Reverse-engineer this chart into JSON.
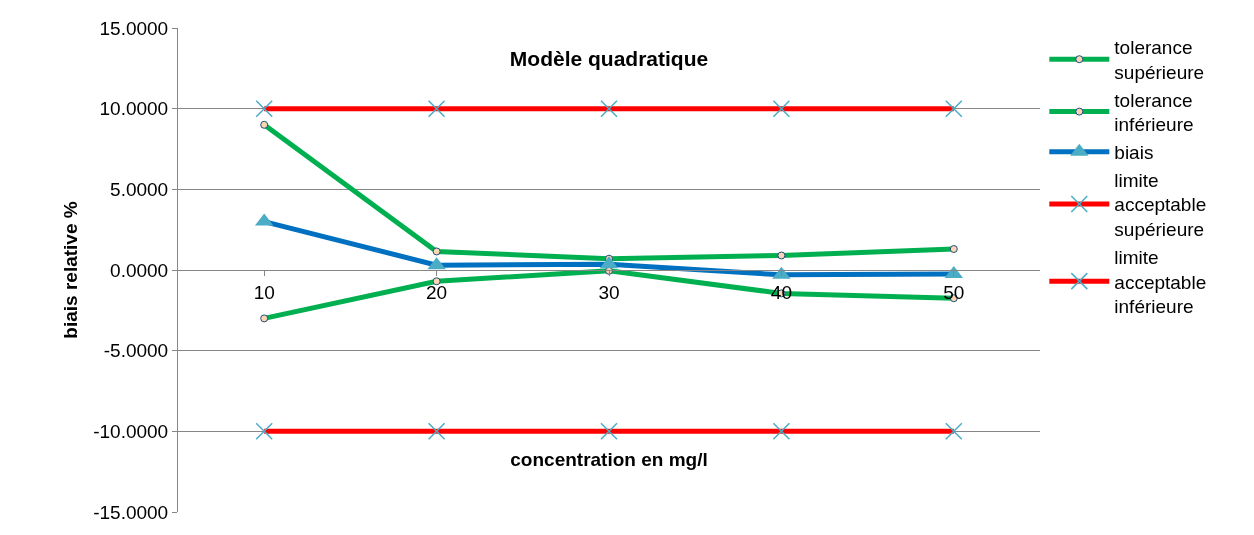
{
  "chart_data": {
    "type": "line",
    "title": "Modèle quadratique",
    "xlabel": "concentration en mg/l",
    "ylabel": "biais relative %",
    "categories": [
      "10",
      "20",
      "30",
      "40",
      "50"
    ],
    "series": [
      {
        "name": "tolerance supérieure",
        "color": "#00b050",
        "marker": "circle",
        "values": [
          9.0,
          1.15,
          0.7,
          0.9,
          1.3
        ]
      },
      {
        "name": "tolerance inférieure",
        "color": "#00b050",
        "marker": "circle",
        "values": [
          -3.0,
          -0.7,
          -0.05,
          -1.45,
          -1.75
        ]
      },
      {
        "name": "biais",
        "color": "#0070c0",
        "marker": "triangle",
        "values": [
          3.0,
          0.3,
          0.35,
          -0.3,
          -0.25
        ]
      },
      {
        "name": "limite acceptable supérieure",
        "color": "#ff0000",
        "marker": "cross",
        "values": [
          10,
          10,
          10,
          10,
          10
        ]
      },
      {
        "name": "limite acceptable inférieure",
        "color": "#ff0000",
        "marker": "cross",
        "values": [
          -10,
          -10,
          -10,
          -10,
          -10
        ]
      }
    ],
    "ylim": [
      -15,
      15
    ],
    "yticks": [
      {
        "value": -15,
        "label": "-15.0000"
      },
      {
        "value": -10,
        "label": "-10.0000"
      },
      {
        "value": -5,
        "label": "-5.0000"
      },
      {
        "value": 0,
        "label": "0.0000"
      },
      {
        "value": 5,
        "label": "5.0000"
      },
      {
        "value": 10,
        "label": "10.0000"
      },
      {
        "value": 15,
        "label": "15.0000"
      }
    ],
    "grid": "y",
    "legend": "right",
    "line_style": "solid"
  }
}
